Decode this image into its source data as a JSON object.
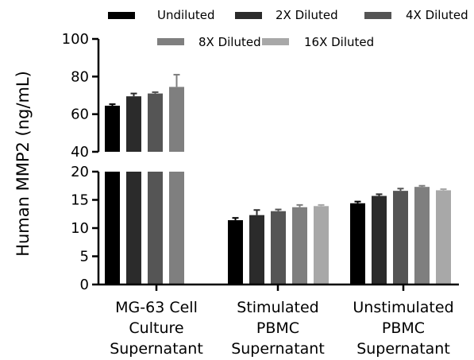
{
  "chart_data": {
    "type": "bar",
    "ylabel": "Human MMP2 (ng/mL)",
    "xlabel": "",
    "title": "",
    "categories": [
      [
        "MG-63 Cell",
        "Culture",
        "Supernatant"
      ],
      [
        "Stimulated",
        "PBMC",
        "Supernatant"
      ],
      [
        "Unstimulated",
        "PBMC",
        "Supernatant"
      ]
    ],
    "series": [
      {
        "name": "Undiluted",
        "color": "#000000",
        "values": [
          64.5,
          11.4,
          14.4
        ],
        "errors": [
          0.8,
          0.4,
          0.3
        ]
      },
      {
        "name": "2X Diluted",
        "color": "#2b2b2b",
        "values": [
          69.5,
          12.3,
          15.7
        ],
        "errors": [
          1.5,
          0.9,
          0.3
        ]
      },
      {
        "name": "4X Diluted",
        "color": "#555555",
        "values": [
          71.0,
          13.0,
          16.6
        ],
        "errors": [
          0.7,
          0.3,
          0.4
        ]
      },
      {
        "name": "8X Diluted",
        "color": "#7f7f7f",
        "values": [
          74.5,
          13.7,
          17.3
        ],
        "errors": [
          6.5,
          0.4,
          0.2
        ]
      },
      {
        "name": "16X Diluted",
        "color": "#a8a8a8",
        "values": [
          null,
          13.9,
          16.7
        ],
        "errors": [
          null,
          0.2,
          0.2
        ]
      }
    ],
    "y_axis_segments": [
      {
        "range": [
          0,
          20
        ],
        "ticks": [
          0,
          5,
          10,
          15,
          20
        ]
      },
      {
        "range": [
          40,
          100
        ],
        "ticks": [
          40,
          60,
          80,
          100
        ]
      }
    ],
    "legend": {
      "position": "top",
      "rows": [
        [
          0,
          1,
          2
        ],
        [
          3,
          4
        ]
      ]
    },
    "grid": false
  }
}
